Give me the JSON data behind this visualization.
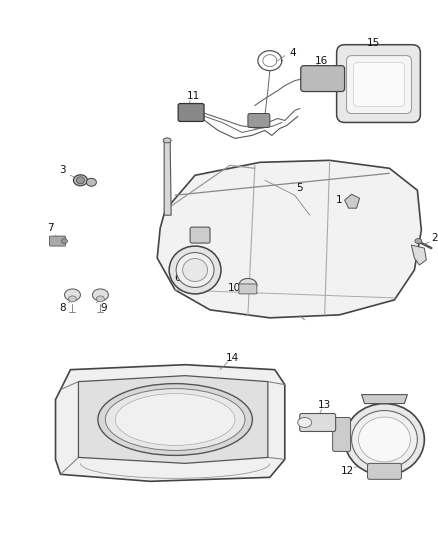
{
  "background_color": "#ffffff",
  "figsize": [
    4.38,
    5.33
  ],
  "dpi": 100,
  "line_color": "#555555",
  "label_color": "#111111",
  "label_fontsize": 7.5
}
